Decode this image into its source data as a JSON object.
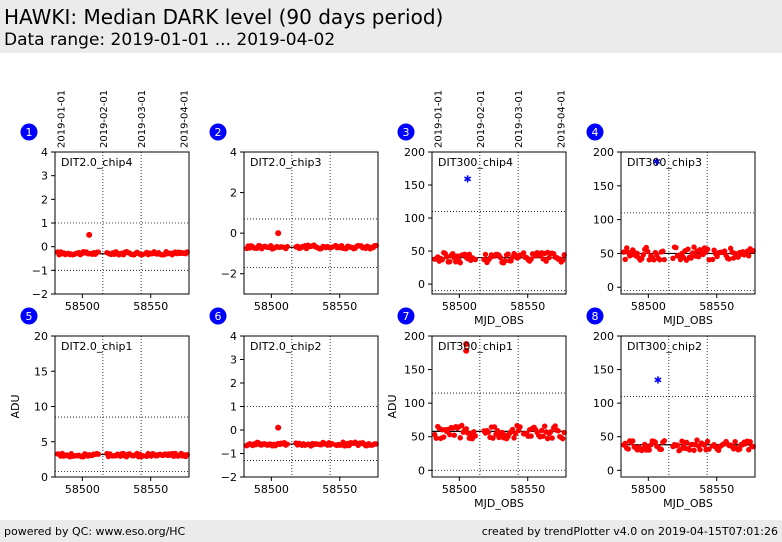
{
  "page": {
    "title": "HAWKI: Median DARK level (90 days period)",
    "subtitle": "Data range: 2019-01-01 ... 2019-04-02",
    "footer_left": "powered by QC: www.eso.org/HC",
    "footer_right": "created by trendPlotter v4.0 on 2019-04-15T07:01:26"
  },
  "colors": {
    "data": "#ff0000",
    "outlier": "#0000ff",
    "badge": "#0000ff",
    "reference": "#000000",
    "header_bg": "#ebebeb"
  },
  "chart_data": [
    {
      "type": "scatter",
      "badge": "1",
      "label": "DIT2.0_chip4",
      "xlim": [
        58480,
        58578
      ],
      "ylim": [
        -2,
        4
      ],
      "yticks": [
        -2,
        -1,
        0,
        1,
        2,
        3,
        4
      ],
      "xticks": [
        58500,
        58550
      ],
      "xticklabels": true,
      "xlabel": "",
      "ylabel": "",
      "date_ticks": [
        "2019-01-01",
        "2019-02-01",
        "2019-03-01",
        "2019-04-01"
      ],
      "reference_line": -0.3,
      "threshold_lines": [
        -1.0,
        1.0
      ],
      "series": [
        {
          "level": -0.28,
          "spread": 0.07
        }
      ],
      "special_points": [
        {
          "x": 58505,
          "y": 0.5,
          "marker": "dot",
          "color": "#ff0000"
        }
      ]
    },
    {
      "type": "scatter",
      "badge": "2",
      "label": "DIT2.0_chip3",
      "xlim": [
        58480,
        58578
      ],
      "ylim": [
        -3,
        4
      ],
      "yticks": [
        -2,
        0,
        2,
        4
      ],
      "xticks": [
        58500,
        58550
      ],
      "xticklabels": true,
      "xlabel": "",
      "ylabel": "",
      "date_ticks": [],
      "reference_line": -0.7,
      "threshold_lines": [
        -1.7,
        0.7
      ],
      "series": [
        {
          "level": -0.68,
          "spread": 0.1
        }
      ],
      "special_points": [
        {
          "x": 58505,
          "y": 0.0,
          "marker": "dot",
          "color": "#ff0000"
        }
      ]
    },
    {
      "type": "scatter",
      "badge": "3",
      "label": "DIT300_chip4",
      "xlim": [
        58480,
        58578
      ],
      "ylim": [
        -15,
        200
      ],
      "yticks": [
        0,
        50,
        100,
        150,
        200
      ],
      "xticks": [
        58500,
        58550
      ],
      "xticklabels": true,
      "xlabel": "MJD_OBS",
      "ylabel": "",
      "date_ticks": [
        "2019-01-01",
        "2019-02-01",
        "2019-03-01",
        "2019-04-01"
      ],
      "reference_line": 40,
      "threshold_lines": [
        -10,
        110
      ],
      "series": [
        {
          "level": 40,
          "spread": 8
        }
      ],
      "special_points": [
        {
          "x": 58506,
          "y": 160,
          "marker": "star",
          "color": "#0000ff"
        }
      ]
    },
    {
      "type": "scatter",
      "badge": "4",
      "label": "DIT300_chip3",
      "xlim": [
        58480,
        58578
      ],
      "ylim": [
        -10,
        200
      ],
      "yticks": [
        0,
        50,
        100,
        150,
        200
      ],
      "xticks": [
        58500,
        58550
      ],
      "xticklabels": true,
      "xlabel": "MJD_OBS",
      "ylabel": "",
      "date_ticks": [],
      "reference_line": 50,
      "threshold_lines": [
        -5,
        110
      ],
      "series": [
        {
          "level": 50,
          "spread": 10
        }
      ],
      "special_points": [
        {
          "x": 58506,
          "y": 187,
          "marker": "star",
          "color": "#0000ff"
        }
      ]
    },
    {
      "type": "scatter",
      "badge": "5",
      "label": "DIT2.0_chip1",
      "xlim": [
        58480,
        58578
      ],
      "ylim": [
        0,
        20
      ],
      "yticks": [
        0,
        5,
        10,
        15,
        20
      ],
      "xticks": [
        58500,
        58550
      ],
      "xticklabels": true,
      "xlabel": "",
      "ylabel": "ADU",
      "date_ticks": [],
      "reference_line": 3.2,
      "threshold_lines": [
        0.8,
        8.5
      ],
      "series": [
        {
          "level": 3.1,
          "spread": 0.25
        }
      ],
      "special_points": []
    },
    {
      "type": "scatter",
      "badge": "6",
      "label": "DIT2.0_chip2",
      "xlim": [
        58480,
        58578
      ],
      "ylim": [
        -2,
        4
      ],
      "yticks": [
        -2,
        -1,
        0,
        1,
        2,
        3,
        4
      ],
      "xticks": [
        58500,
        58550
      ],
      "xticklabels": true,
      "xlabel": "",
      "ylabel": "",
      "date_ticks": [],
      "reference_line": -0.6,
      "threshold_lines": [
        -1.3,
        1.0
      ],
      "series": [
        {
          "level": -0.6,
          "spread": 0.08
        }
      ],
      "special_points": [
        {
          "x": 58505,
          "y": 0.1,
          "marker": "dot",
          "color": "#ff0000"
        }
      ]
    },
    {
      "type": "scatter",
      "badge": "7",
      "label": "DIT300_chip1",
      "xlim": [
        58480,
        58578
      ],
      "ylim": [
        -10,
        200
      ],
      "yticks": [
        0,
        50,
        100,
        150,
        200
      ],
      "xticks": [
        58500,
        58550
      ],
      "xticklabels": true,
      "xlabel": "MJD_OBS",
      "ylabel": "ADU",
      "date_ticks": [],
      "reference_line": 58,
      "threshold_lines": [
        0,
        115
      ],
      "series": [
        {
          "level": 57,
          "spread": 10
        }
      ],
      "special_points": [
        {
          "x": 58505,
          "y": 188,
          "marker": "dot",
          "color": "#ff0000"
        },
        {
          "x": 58505,
          "y": 178,
          "marker": "dot",
          "color": "#ff0000"
        }
      ]
    },
    {
      "type": "scatter",
      "badge": "8",
      "label": "DIT300_chip2",
      "xlim": [
        58480,
        58578
      ],
      "ylim": [
        -10,
        200
      ],
      "yticks": [
        0,
        50,
        100,
        150,
        200
      ],
      "xticks": [
        58500,
        58550
      ],
      "xticklabels": true,
      "xlabel": "MJD_OBS",
      "ylabel": "",
      "date_ticks": [],
      "reference_line": 38,
      "threshold_lines": [
        -10,
        110
      ],
      "series": [
        {
          "level": 37,
          "spread": 8
        }
      ],
      "special_points": [
        {
          "x": 58507,
          "y": 135,
          "marker": "star",
          "color": "#0000ff"
        }
      ]
    }
  ]
}
